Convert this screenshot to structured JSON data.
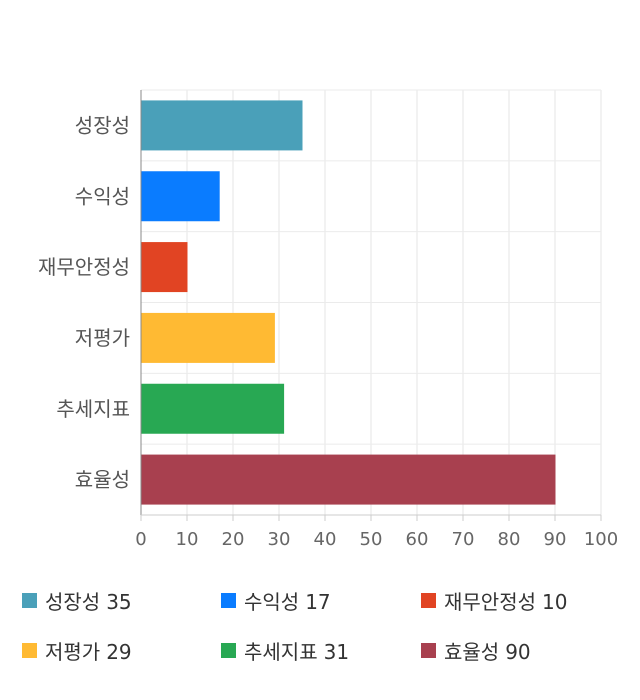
{
  "chart_data": {
    "type": "bar",
    "orientation": "horizontal",
    "categories": [
      "성장성",
      "수익성",
      "재무안정성",
      "저평가",
      "추세지표",
      "효율성"
    ],
    "values": [
      35,
      17,
      10,
      29,
      31,
      90
    ],
    "colors": [
      "#4aa0b9",
      "#0a7cff",
      "#e14423",
      "#ffba33",
      "#28a853",
      "#a8404f"
    ],
    "xlim": [
      0,
      100
    ],
    "x_ticks": [
      "0",
      "10",
      "20",
      "30",
      "40",
      "50",
      "60",
      "70",
      "80",
      "90",
      "100"
    ],
    "grid": true,
    "legend_position": "bottom",
    "title": "",
    "xlabel": "",
    "ylabel": ""
  },
  "legend": {
    "items": [
      {
        "label": "성장성",
        "value": "35",
        "color": "#4aa0b9"
      },
      {
        "label": "수익성",
        "value": "17",
        "color": "#0a7cff"
      },
      {
        "label": "재무안정성",
        "value": "10",
        "color": "#e14423"
      },
      {
        "label": "저평가",
        "value": "29",
        "color": "#ffba33"
      },
      {
        "label": "추세지표",
        "value": "31",
        "color": "#28a853"
      },
      {
        "label": "효율성",
        "value": "90",
        "color": "#a8404f"
      }
    ]
  }
}
